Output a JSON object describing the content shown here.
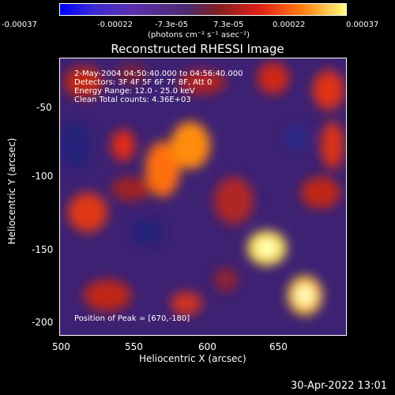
{
  "colorbar": {
    "ticks": [
      "-0.00037",
      "-0.00022",
      "-7.3e-05",
      "7.3e-05",
      "0.00022",
      "0.00037"
    ],
    "units": "(photons cm⁻² s⁻¹ asec⁻²)"
  },
  "plot": {
    "title": "Reconstructed RHESSI Image",
    "annotations": {
      "time": "2-May-2004 04:50:40.000 to 04:56:40.000",
      "detectors": "Detectors: 3F 4F 5F 6F 7F 8F, Att 0",
      "energy": "Energy Range: 12.0 - 25.0 keV",
      "clean": "Clean     Total counts: 4.36E+03",
      "peak": "Position of Peak = [670,-180]"
    },
    "x_axis": {
      "label": "Heliocentric X (arcsec)",
      "ticks": [
        "500",
        "550",
        "600",
        "650"
      ]
    },
    "y_axis": {
      "label": "Heliocentric Y (arcsec)",
      "ticks": [
        "-50",
        "-100",
        "-150",
        "-200"
      ]
    }
  },
  "timestamp": "30-Apr-2022 13:01"
}
